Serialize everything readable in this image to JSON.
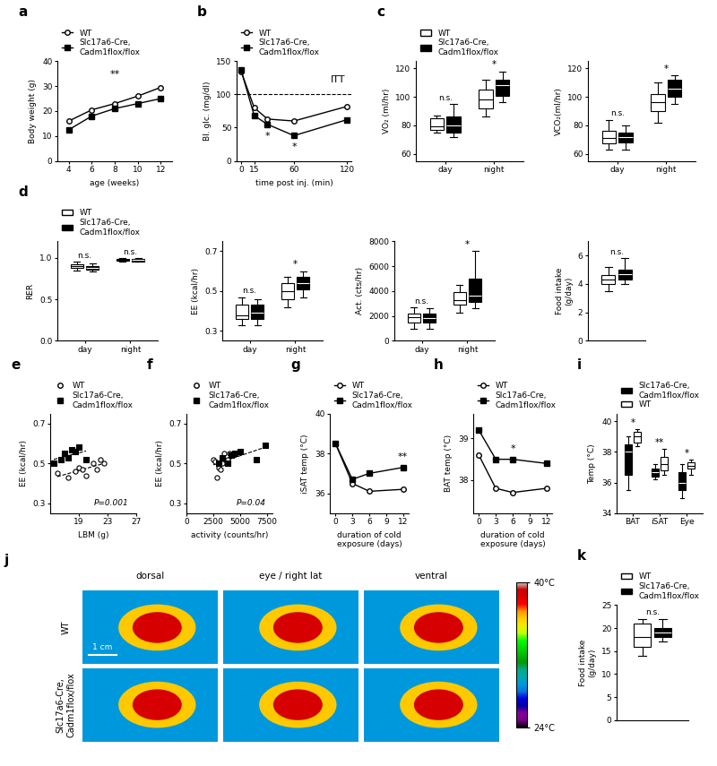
{
  "chart_data": [
    {
      "type": "line",
      "title": "a",
      "xlabel": "age (weeks)",
      "ylabel": "Body weight (g)",
      "x": [
        4,
        6,
        8,
        10,
        12
      ],
      "xlim": [
        3,
        13
      ],
      "xticks": [
        4,
        6,
        8,
        10,
        12
      ],
      "ylim": [
        0,
        40
      ],
      "yticks": [
        0,
        10,
        20,
        30,
        40
      ],
      "legend": "top",
      "series": [
        {
          "name": "WT",
          "color": "#ffffff",
          "marker": "circle",
          "values": [
            16,
            20.5,
            23,
            26,
            29.5
          ]
        },
        {
          "name": "Slc17a6-Cre,\nCadm1flox/flox",
          "color": "#000000",
          "marker": "square",
          "values": [
            12.5,
            18,
            21,
            23,
            25
          ]
        }
      ],
      "annotations": [
        {
          "text": "**",
          "x": 8,
          "y": 33
        }
      ]
    },
    {
      "type": "line",
      "title": "b",
      "xlabel": "time post inj. (min)",
      "ylabel": "Bl. glc. (mg/dl)",
      "x": [
        0,
        15,
        30,
        60,
        120
      ],
      "xlim": [
        -5,
        125
      ],
      "xticks": [
        0,
        15,
        60,
        120
      ],
      "ylim": [
        0,
        150
      ],
      "yticks": [
        0,
        50,
        100,
        150
      ],
      "hline": 100,
      "legend": "top",
      "series": [
        {
          "name": "WT",
          "color": "#ffffff",
          "marker": "circle",
          "values": [
            135,
            80,
            63,
            60,
            82
          ]
        },
        {
          "name": "Slc17a6-Cre,\nCadm1flox/flox",
          "color": "#000000",
          "marker": "square",
          "values": [
            137,
            68,
            55,
            38,
            62
          ]
        }
      ],
      "annotations": [
        {
          "text": "ITT",
          "x": 110,
          "y": 115
        },
        {
          "text": "*",
          "x": 30,
          "y": 30
        },
        {
          "text": "*",
          "x": 60,
          "y": 14
        }
      ]
    },
    {
      "type": "box",
      "title": "c",
      "ylabel": "VO₂ (ml/hr)",
      "categories": [
        "day",
        "night"
      ],
      "ylim": [
        55,
        125
      ],
      "yticks": [
        60,
        80,
        100,
        120
      ],
      "legend": "top",
      "series": [
        {
          "name": "WT",
          "color": "#ffffff",
          "stats": [
            [
              75,
              77,
              79,
              85,
              87
            ],
            [
              86,
              92,
              98,
              105,
              112
            ]
          ]
        },
        {
          "name": "Slc17a6-Cre,\nCadm1flox/flox",
          "color": "#000000",
          "stats": [
            [
              72,
              75,
              80,
              86,
              95
            ],
            [
              96,
              101,
              108,
              112,
              118
            ]
          ]
        }
      ],
      "annotations": [
        {
          "text": "n.s.",
          "category": 0
        },
        {
          "text": "*",
          "category": 1
        }
      ]
    },
    {
      "type": "box",
      "ylabel": "VCO₂(ml/hr)",
      "categories": [
        "day",
        "night"
      ],
      "ylim": [
        55,
        125
      ],
      "yticks": [
        60,
        80,
        100,
        120
      ],
      "series": [
        {
          "color": "#ffffff",
          "stats": [
            [
              63,
              67,
              71,
              76,
              84
            ],
            [
              82,
              90,
              96,
              102,
              110
            ]
          ]
        },
        {
          "color": "#000000",
          "stats": [
            [
              63,
              68,
              72,
              75,
              80
            ],
            [
              95,
              100,
              106,
              112,
              115
            ]
          ]
        }
      ],
      "annotations": [
        {
          "text": "n.s.",
          "category": 0
        },
        {
          "text": "*",
          "category": 1
        }
      ]
    },
    {
      "type": "box",
      "title": "d",
      "ylabel": "RER",
      "categories": [
        "day",
        "night"
      ],
      "ylim": [
        0,
        1.2
      ],
      "yticks": [
        0.0,
        0.5,
        1.0
      ],
      "legend": "top",
      "series": [
        {
          "name": "WT",
          "color": "#ffffff",
          "stats": [
            [
              0.85,
              0.88,
              0.9,
              0.92,
              0.95
            ],
            [
              0.95,
              0.97,
              0.98,
              0.99,
              1.0
            ]
          ]
        },
        {
          "name": "Slc17a6-Cre,\nCadm1flox/flox",
          "color": "#000000",
          "stats": [
            [
              0.84,
              0.86,
              0.88,
              0.9,
              0.93
            ],
            [
              0.95,
              0.96,
              0.98,
              0.99,
              1.0
            ]
          ]
        }
      ],
      "annotations": [
        {
          "text": "n.s.",
          "category": 0
        },
        {
          "text": "n.s.",
          "category": 1
        }
      ]
    },
    {
      "type": "box",
      "ylabel": "EE (kcal/hr)",
      "categories": [
        "day",
        "night"
      ],
      "ylim": [
        0.25,
        0.75
      ],
      "yticks": [
        0.3,
        0.5,
        0.7
      ],
      "series": [
        {
          "color": "#ffffff",
          "stats": [
            [
              0.33,
              0.36,
              0.38,
              0.43,
              0.47
            ],
            [
              0.42,
              0.46,
              0.5,
              0.54,
              0.57
            ]
          ]
        },
        {
          "color": "#000000",
          "stats": [
            [
              0.33,
              0.36,
              0.39,
              0.43,
              0.46
            ],
            [
              0.47,
              0.51,
              0.54,
              0.57,
              0.6
            ]
          ]
        }
      ],
      "annotations": [
        {
          "text": "n.s.",
          "category": 0
        },
        {
          "text": "*",
          "category": 1
        }
      ]
    },
    {
      "type": "box",
      "ylabel": "Act. (cts/hr)",
      "categories": [
        "day",
        "night"
      ],
      "ylim": [
        0,
        8000
      ],
      "yticks": [
        0,
        2000,
        4000,
        6000,
        8000
      ],
      "series": [
        {
          "color": "#ffffff",
          "stats": [
            [
              1000,
              1500,
              1900,
              2200,
              2700
            ],
            [
              2300,
              2900,
              3300,
              3900,
              4500
            ]
          ]
        },
        {
          "color": "#000000",
          "stats": [
            [
              1000,
              1500,
              1800,
              2200,
              2600
            ],
            [
              2600,
              3100,
              3600,
              5000,
              7200
            ]
          ]
        }
      ],
      "annotations": [
        {
          "text": "n.s.",
          "category": 0
        },
        {
          "text": "*",
          "category": 1
        }
      ]
    },
    {
      "type": "box",
      "ylabel": "Food intake\n(g/day)",
      "categories": [
        null
      ],
      "ylim": [
        0,
        7
      ],
      "yticks": [
        0,
        2,
        4,
        6
      ],
      "series": [
        {
          "color": "#ffffff",
          "stats": [
            [
              3.5,
              4.0,
              4.3,
              4.6,
              5.2
            ]
          ]
        },
        {
          "color": "#000000",
          "stats": [
            [
              4.0,
              4.3,
              4.7,
              5.0,
              5.8
            ]
          ]
        }
      ],
      "annotations": [
        {
          "text": "n.s.",
          "category": 0
        }
      ]
    },
    {
      "type": "scatter",
      "title": "e",
      "xlabel": "LBM (g)",
      "ylabel": "EE (kcal/hr)",
      "xlim": [
        15,
        27
      ],
      "xticks": [
        19,
        23,
        27
      ],
      "ylim": [
        0.25,
        0.75
      ],
      "yticks": [
        0.3,
        0.5,
        0.7
      ],
      "legend": "top",
      "series": [
        {
          "name": "WT",
          "color": "#ffffff",
          "marker": "circle",
          "line_style": "dashed",
          "x": [
            16,
            17.5,
            18.5,
            19,
            20,
            21,
            21.5,
            22,
            22.5,
            19.5
          ],
          "values": [
            0.45,
            0.43,
            0.46,
            0.48,
            0.44,
            0.5,
            0.47,
            0.52,
            0.5,
            0.47
          ]
        },
        {
          "name": "Slc17a6-Cre,\nCadm1flox/flox",
          "color": "#000000",
          "marker": "square",
          "line_style": "dashed",
          "x": [
            15.5,
            16.5,
            17,
            17.5,
            18,
            18.5,
            19,
            20
          ],
          "values": [
            0.5,
            0.52,
            0.55,
            0.53,
            0.57,
            0.56,
            0.58,
            0.52
          ]
        }
      ],
      "annotations": [
        {
          "text": "P=0.001",
          "x": 23.5,
          "y": 0.28
        }
      ]
    },
    {
      "type": "scatter",
      "title": "f",
      "xlabel": "activity (counts/hr)",
      "ylabel": "EE (kcal/hr)",
      "xlim": [
        0,
        8000
      ],
      "xticks": [
        0,
        2500,
        5000,
        7500
      ],
      "ylim": [
        0.25,
        0.75
      ],
      "yticks": [
        0.3,
        0.5,
        0.7
      ],
      "legend": "top",
      "line_style": "dashed",
      "series": [
        {
          "name": "WT",
          "color": "#ffffff",
          "marker": "circle",
          "x": [
            2500,
            2800,
            3000,
            3300,
            3500,
            3800,
            4000,
            3200,
            2700
          ],
          "values": [
            0.52,
            0.43,
            0.48,
            0.5,
            0.55,
            0.52,
            0.55,
            0.47,
            0.51
          ]
        },
        {
          "name": "Slc17a6-Cre,\nCadm1flox/flox",
          "color": "#000000",
          "marker": "square",
          "x": [
            3000,
            3300,
            3800,
            4200,
            4500,
            5000,
            6500,
            7300
          ],
          "values": [
            0.5,
            0.53,
            0.5,
            0.54,
            0.55,
            0.56,
            0.52,
            0.59
          ]
        }
      ],
      "annotations": [
        {
          "text": "P=0.04",
          "x": 6000,
          "y": 0.28
        }
      ]
    },
    {
      "type": "line",
      "title": "g",
      "xlabel": "duration of cold\nexposure (days)",
      "ylabel": "iSAT temp (°C)",
      "x": [
        0,
        3,
        6,
        12
      ],
      "xlim": [
        -1,
        13
      ],
      "xticks": [
        0,
        3,
        6,
        9,
        12
      ],
      "ylim": [
        35,
        40
      ],
      "yticks": [
        36,
        38,
        40
      ],
      "legend": "top",
      "series": [
        {
          "name": "WT",
          "color": "#ffffff",
          "marker": "circle",
          "values": [
            38.5,
            36.5,
            36.1,
            36.2
          ]
        },
        {
          "name": "Slc17a6-Cre,\nCadm1flox/flox",
          "color": "#000000",
          "marker": "square",
          "values": [
            38.5,
            36.7,
            37.0,
            37.3
          ]
        }
      ],
      "annotations": [
        {
          "text": "**",
          "x": 12,
          "y": 37.6
        }
      ]
    },
    {
      "type": "line",
      "title": "h",
      "xlabel": "duration of cold\nexposure (days)",
      "ylabel": "BAT temp (°C)",
      "x": [
        0,
        3,
        6,
        12
      ],
      "xlim": [
        -1,
        13
      ],
      "xticks": [
        0,
        3,
        6,
        9,
        12
      ],
      "ylim": [
        37.2,
        39.6
      ],
      "yticks": [
        38,
        39
      ],
      "legend": "top",
      "series": [
        {
          "name": "WT",
          "color": "#ffffff",
          "marker": "circle",
          "values": [
            38.6,
            37.8,
            37.7,
            37.8
          ]
        },
        {
          "name": "Slc17a6-Cre,\nCadm1flox/flox",
          "color": "#000000",
          "marker": "square",
          "values": [
            39.2,
            38.5,
            38.5,
            38.4
          ]
        }
      ],
      "annotations": [
        {
          "text": "*",
          "x": 6,
          "y": 38.65
        }
      ]
    },
    {
      "type": "box",
      "title": "i",
      "ylabel": "Temp (°C)",
      "categories": [
        "BAT",
        "iSAT",
        "Eye"
      ],
      "ylim": [
        34,
        40.5
      ],
      "yticks": [
        34,
        36,
        38,
        40
      ],
      "legend": "top",
      "series": [
        {
          "name": "Slc17a6-Cre,\nCadm1flox/flox",
          "color": "#000000",
          "stats": [
            [
              35.5,
              36.5,
              38,
              38.5,
              39
            ],
            [
              36.2,
              36.4,
              36.7,
              36.9,
              37.2
            ],
            [
              35,
              35.5,
              36,
              36.7,
              37.2
            ]
          ]
        },
        {
          "name": "WT",
          "color": "#ffffff",
          "stats": [
            [
              38.4,
              38.6,
              39,
              39.3,
              39.5
            ],
            [
              36.5,
              36.8,
              37.2,
              37.7,
              38.2
            ],
            [
              36.5,
              36.9,
              37.1,
              37.3,
              37.5
            ]
          ]
        }
      ],
      "annotations": [
        {
          "text": "*",
          "category": 0
        },
        {
          "text": "**",
          "category": 1
        },
        {
          "text": "*",
          "category": 2
        }
      ]
    },
    {
      "type": "image",
      "title": "j",
      "columns": [
        "dorsal",
        "eye / right lat",
        "ventral"
      ],
      "rows": [
        "WT",
        "Slc17a6-Cre,\nCadm1flox/flox"
      ],
      "scale_bar": "1 cm",
      "colorbar": {
        "range": [
          24,
          40
        ],
        "ticks": [
          {
            "value": 24,
            "label": "24°C"
          },
          {
            "value": 40,
            "label": "40°C"
          }
        ]
      }
    },
    {
      "type": "box",
      "title": "k",
      "ylabel": "Food intake\n(g/day)",
      "categories": [
        null
      ],
      "ylim": [
        0,
        25
      ],
      "yticks": [
        0,
        5,
        10,
        15,
        20,
        25
      ],
      "legend": "top",
      "series": [
        {
          "name": "WT",
          "color": "#ffffff",
          "stats": [
            [
              14,
              16,
              18,
              21,
              22
            ]
          ]
        },
        {
          "name": "Slc17a6-Cre,\nCadm1flox/flox",
          "color": "#000000",
          "stats": [
            [
              17,
              18,
              19,
              20,
              22
            ]
          ]
        }
      ],
      "annotations": [
        {
          "text": "n.s.",
          "category": 0
        }
      ]
    }
  ]
}
